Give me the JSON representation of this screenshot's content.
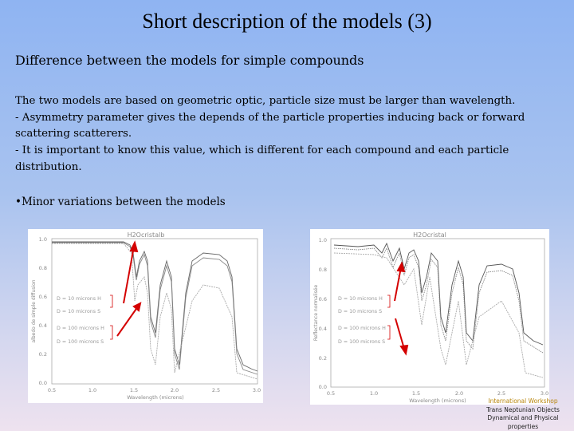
{
  "slide": {
    "title": "Short description of the models (3)",
    "subtitle": "Difference between the models for simple compounds",
    "paragraph": [
      "The two models are based on geometric optic, particle size must be larger than wavelength.",
      "- Asymmetry parameter gives the depends of the particle properties inducing back or forward",
      "scattering scatterers.",
      "- It is important to know this value, which is different for each compound and each particle",
      "distribution."
    ],
    "bullet": "•Minor variations between the models"
  },
  "plots": [
    {
      "title": "H2Ocristalb",
      "ylabel": "albedo de simple diffusion",
      "xlabel": "Wavelength (microns)",
      "xticks": [
        "0.5",
        "1.0",
        "1.5",
        "2.0",
        "2.5",
        "3.0"
      ],
      "yticks": [
        "1.0",
        "0.8",
        "0.6",
        "0.4",
        "0.2",
        "0.0"
      ],
      "legend": [
        "D = 10 microns H",
        "D = 10 microns S",
        "D = 100 microns H",
        "D = 100 microns S"
      ]
    },
    {
      "title": "H2Ocristal",
      "ylabel": "Reflectance normalisée",
      "xlabel": "Wavelength (microns)",
      "xticks": [
        "0.5",
        "1.0",
        "1.5",
        "2.0",
        "2.5",
        "3.0"
      ],
      "yticks": [
        "1.0",
        "0.8",
        "0.6",
        "0.4",
        "0.2",
        "0.0"
      ],
      "legend": [
        "D = 10 microns H",
        "D = 10 microns S",
        "D = 100 microns H",
        "D = 100 microns S"
      ]
    }
  ],
  "footer": {
    "line1": "International Workshop",
    "line2": "Trans Neptunian Objects",
    "line3": "Dynamical and Physical",
    "line4": "properties"
  },
  "colors": {
    "arrow": "#d40000",
    "curve": "#666666",
    "axis": "#999999"
  }
}
